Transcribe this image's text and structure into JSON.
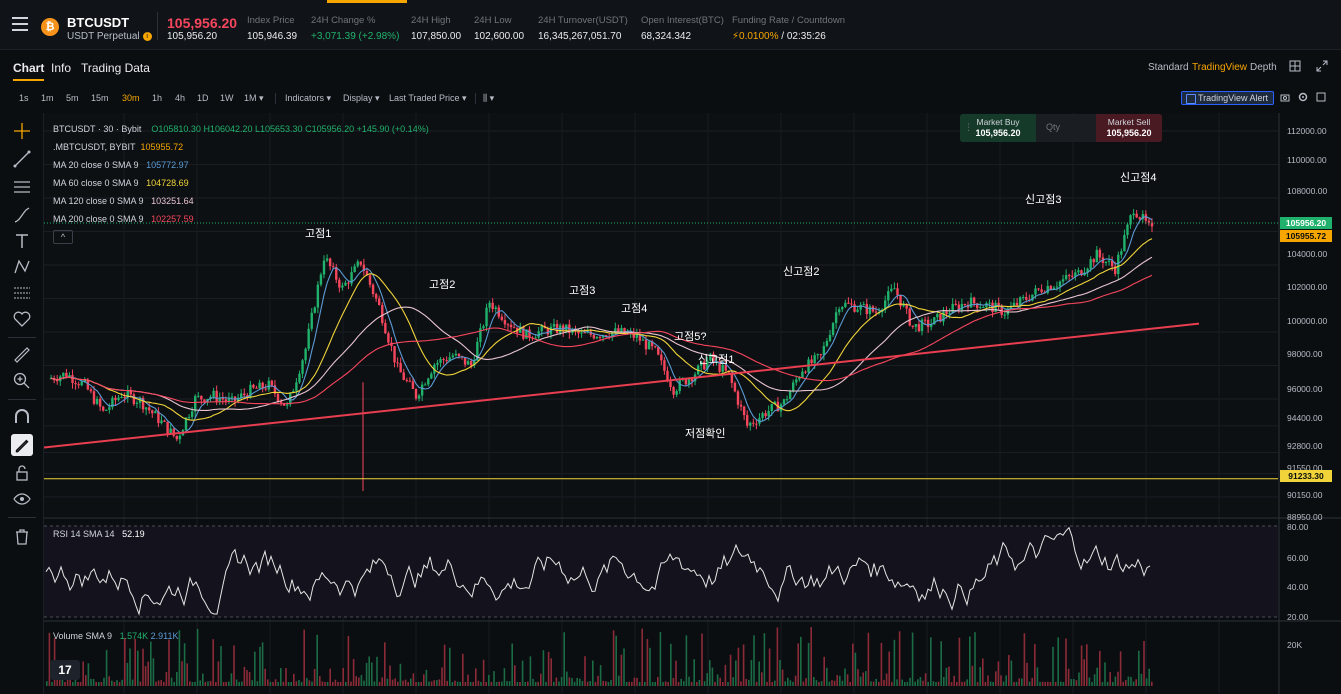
{
  "header": {
    "symbol": "BTCUSDT",
    "subtitle": "USDT Perpetual",
    "coin_letter": "₿",
    "last_price": "105,956.20",
    "last_price_sub": "105,956.20",
    "stats": [
      {
        "label": "Index Price",
        "value": "105,946.39",
        "color": "#eaecef"
      },
      {
        "label": "24H Change %",
        "value": "+3,071.39 (+2.98%)",
        "color": "#20b26c"
      },
      {
        "label": "24H High",
        "value": "107,850.00",
        "color": "#eaecef"
      },
      {
        "label": "24H Low",
        "value": "102,600.00",
        "color": "#eaecef"
      },
      {
        "label": "24H Turnover(USDT)",
        "value": "16,345,267,051.70",
        "color": "#eaecef"
      },
      {
        "label": "Open Interest(BTC)",
        "value": "68,324.342",
        "color": "#eaecef"
      },
      {
        "label": "Funding Rate / Countdown",
        "value_rate": "0.0100%",
        "value_countdown": "02:35:26",
        "color": "#f7a600"
      }
    ]
  },
  "tabs": [
    "Chart",
    "Info",
    "Trading Data"
  ],
  "view_options": [
    "Standard",
    "TradingView",
    "Depth"
  ],
  "toolbar": {
    "timeframes": [
      "1s",
      "1m",
      "5m",
      "15m",
      "30m",
      "1h",
      "4h",
      "1D",
      "1W",
      "1M"
    ],
    "active_timeframe": "30m",
    "indicators": "Indicators",
    "display": "Display",
    "price_type": "Last Traded Price",
    "tv_alert": "TradingView Alert"
  },
  "legend": {
    "title": "BTCUSDT · 30 · Bybit",
    "ohlc": {
      "o": "O105810.30",
      "h": "H106042.20",
      "l": "L105653.30",
      "c": "C105956.20",
      "chg": "+145.90 (+0.14%)"
    },
    "mark": ".MBTCUSDT, BYBIT",
    "mark_value": "105955.72",
    "ma": [
      {
        "label": "MA 20 close 0 SMA 9",
        "value": "105772.97",
        "color": "#5b9bd5"
      },
      {
        "label": "MA 60 close 0 SMA 9",
        "value": "104728.69",
        "color": "#f0d43a"
      },
      {
        "label": "MA 120 close 0 SMA 9",
        "value": "103251.64",
        "color": "#e8c4d0"
      },
      {
        "label": "MA 200 close 0 SMA 9",
        "value": "102257.59",
        "color": "#f6465d"
      }
    ],
    "collapse": "^"
  },
  "market": {
    "buy_label": "Market Buy",
    "buy_price": "105,956.20",
    "qty": "Qty",
    "sell_label": "Market Sell",
    "sell_price": "105,956.20"
  },
  "annotations": [
    "고점1",
    "고점2",
    "고점3",
    "고점4",
    "고점5?",
    "신고점1",
    "저점확인",
    "신고점2",
    "신고점3",
    "신고점4"
  ],
  "price_axis": [
    "112000.00",
    "110000.00",
    "108000.00",
    "104000.00",
    "102000.00",
    "100000.00",
    "98000.00",
    "96000.00",
    "94400.00",
    "92800.00",
    "91550.00",
    "90150.00",
    "88950.00"
  ],
  "price_tags": {
    "last": "105956.20",
    "mark": "105955.72",
    "hline": "91233.30"
  },
  "rsi": {
    "label": "RSI 14 SMA 14",
    "value": "52.19",
    "axis": [
      "80.00",
      "60.00",
      "40.00",
      "20.00"
    ]
  },
  "volume": {
    "label": "Volume SMA 9",
    "v1": "1.574K",
    "v2": "2.911K",
    "axis": "20K"
  },
  "tv_logo": "17",
  "chart_data": {
    "type": "line",
    "title": "BTCUSDT · 30 · Bybit",
    "xlabel": "",
    "ylabel": "",
    "ylim": [
      88950,
      112000
    ],
    "series": [
      {
        "name": "BTCUSDT",
        "x": [
          0,
          4,
          8,
          12,
          16,
          20,
          24,
          28,
          32,
          36,
          40,
          44,
          48,
          52,
          56,
          60,
          64,
          68,
          72,
          76,
          80,
          84,
          88,
          92,
          96,
          100,
          104,
          108,
          112,
          116,
          120,
          124,
          128,
          132,
          136,
          140,
          144,
          148,
          152,
          156,
          160,
          164,
          168,
          172,
          176,
          180,
          184,
          188,
          192,
          196,
          200,
          204,
          208,
          212,
          216,
          220,
          224,
          228,
          232,
          236,
          240
        ],
        "values": [
          97200,
          97500,
          96800,
          95200,
          96300,
          95900,
          94800,
          93600,
          96000,
          96200,
          95800,
          96500,
          96800,
          95500,
          99000,
          104500,
          102600,
          104200,
          101500,
          97800,
          96200,
          98100,
          98600,
          98000,
          101800,
          100600,
          99800,
          100100,
          100200,
          99800,
          99900,
          100000,
          99700,
          98800,
          96600,
          97400,
          98400,
          97400,
          94400,
          95200,
          95800,
          97800,
          98500,
          101700,
          101500,
          101200,
          102600,
          100300,
          100500,
          101300,
          101800,
          101600,
          101200,
          101900,
          102600,
          103000,
          103500,
          104600,
          103800,
          107400,
          106000
        ]
      }
    ]
  }
}
